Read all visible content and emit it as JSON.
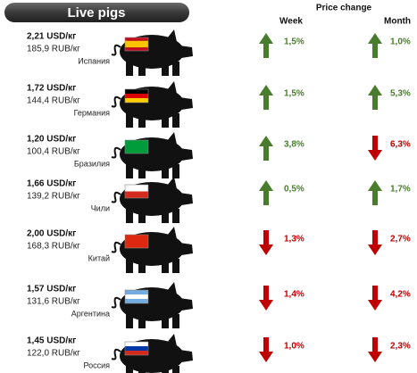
{
  "header": {
    "title": "Live pigs",
    "price_change": "Price change",
    "week": "Week",
    "month": "Month"
  },
  "rows": [
    {
      "usd": "2,21 USD/кг",
      "rub": "185,9 RUB/кг",
      "country": "Испания",
      "week": "1,5%",
      "week_trend": "up",
      "month": "1,0%",
      "month_trend": "up"
    },
    {
      "usd": "1,72 USD/кг",
      "rub": "144,4 RUB/кг",
      "country": "Германия",
      "week": "1,5%",
      "week_trend": "up",
      "month": "5,3%",
      "month_trend": "up"
    },
    {
      "usd": "1,20 USD/кг",
      "rub": "100,4 RUB/кг",
      "country": "Бразилия",
      "week": "3,8%",
      "week_trend": "up",
      "month": "6,3%",
      "month_trend": "down"
    },
    {
      "usd": "1,66 USD/кг",
      "rub": "139,2 RUB/кг",
      "country": "Чили",
      "week": "0,5%",
      "week_trend": "up",
      "month": "1,7%",
      "month_trend": "up"
    },
    {
      "usd": "2,00 USD/кг",
      "rub": "168,3 RUB/кг",
      "country": "Китай",
      "week": "1,3%",
      "week_trend": "down",
      "month": "2,7%",
      "month_trend": "down"
    },
    {
      "usd": "1,57 USD/кг",
      "rub": "131,6 RUB/кг",
      "country": "Аргентина",
      "week": "1,4%",
      "week_trend": "down",
      "month": "4,2%",
      "month_trend": "down"
    },
    {
      "usd": "1,45 USD/кг",
      "rub": "122,0 RUB/кг",
      "country": "Россия",
      "week": "1,0%",
      "week_trend": "down",
      "month": "2,3%",
      "month_trend": "down"
    }
  ]
}
